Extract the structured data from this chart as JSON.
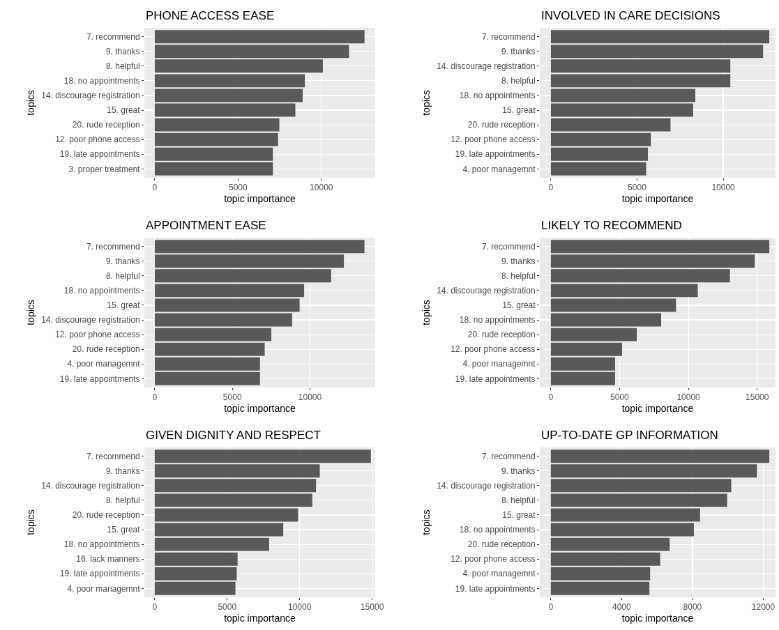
{
  "chart_data": [
    {
      "type": "bar",
      "orientation": "horizontal",
      "title": "PHONE ACCESS EASE",
      "xlabel": "topic importance",
      "ylabel": "topics",
      "color": "#595959",
      "grid": true,
      "xlim": [
        -620,
        13230
      ],
      "xticks": [
        0,
        5000,
        10000
      ],
      "categories": [
        "7. recommend",
        "9. thanks",
        "8. helpful",
        "18. no appointments",
        "14. discourage registration",
        "15. great",
        "20. rude reception",
        "12. poor phone access",
        "19. late appointments",
        "3. proper treatment"
      ],
      "values": [
        12590,
        11660,
        10090,
        9010,
        8880,
        8440,
        7480,
        7400,
        7090,
        7090
      ]
    },
    {
      "type": "bar",
      "orientation": "horizontal",
      "title": "INVOLVED IN CARE DECISIONS",
      "xlabel": "topic importance",
      "ylabel": "topics",
      "color": "#595959",
      "grid": true,
      "xlim": [
        -640,
        13030
      ],
      "xticks": [
        0,
        5000,
        10000
      ],
      "categories": [
        "7. recommend",
        "9. thanks",
        "14. discourage registration",
        "8. helpful",
        "18. no appointments",
        "15. great",
        "20. rude reception",
        "12. poor phone access",
        "19. late appointments",
        "4. poor managemnt"
      ],
      "values": [
        12670,
        12310,
        10410,
        10410,
        8380,
        8250,
        6940,
        5800,
        5630,
        5530
      ]
    },
    {
      "type": "bar",
      "orientation": "horizontal",
      "title": "APPOINTMENT EASE",
      "xlabel": "topic importance",
      "ylabel": "topics",
      "color": "#595959",
      "grid": true,
      "xlim": [
        -670,
        14200
      ],
      "xticks": [
        0,
        5000,
        10000
      ],
      "categories": [
        "7. recommend",
        "9. thanks",
        "8. helpful",
        "18. no appointments",
        "15. great",
        "14. discourage registration",
        "12. poor phone access",
        "20. rude reception",
        "4. poor managemnt",
        "19. late appointments"
      ],
      "values": [
        13510,
        12180,
        11360,
        9620,
        9330,
        8850,
        7510,
        7080,
        6780,
        6780
      ]
    },
    {
      "type": "bar",
      "orientation": "horizontal",
      "title": "LIKELY TO RECOMMEND",
      "xlabel": "topic importance",
      "ylabel": "topics",
      "color": "#595959",
      "grid": true,
      "xlim": [
        -800,
        16330
      ],
      "xticks": [
        0,
        5000,
        10000,
        15000
      ],
      "categories": [
        "7. recommend",
        "9. thanks",
        "8. helpful",
        "14. discourage registration",
        "15. great",
        "18. no appointments",
        "20. rude reception",
        "12. poor phone access",
        "4. poor managemnt",
        "19. late appointments"
      ],
      "values": [
        15880,
        14820,
        13020,
        10680,
        9100,
        8020,
        6250,
        5180,
        4670,
        4670
      ]
    },
    {
      "type": "bar",
      "orientation": "horizontal",
      "title": "GIVEN DIGNITY AND RESPECT",
      "xlabel": "topic importance",
      "ylabel": "topics",
      "color": "#595959",
      "grid": true,
      "xlim": [
        -710,
        15210
      ],
      "xticks": [
        0,
        5000,
        10000,
        15000
      ],
      "categories": [
        "7. recommend",
        "9. thanks",
        "14. discourage registration",
        "8. helpful",
        "20. rude reception",
        "15. great",
        "18. no appointments",
        "16. lack manners",
        "19. late appointments",
        "4. poor managemnt"
      ],
      "values": [
        14910,
        11390,
        11130,
        10870,
        9890,
        8870,
        7890,
        5720,
        5660,
        5570
      ]
    },
    {
      "type": "bar",
      "orientation": "horizontal",
      "title": "UP-TO-DATE GP INFORMATION",
      "xlabel": "topic importance",
      "ylabel": "topics",
      "color": "#595959",
      "grid": true,
      "xlim": [
        -620,
        12690
      ],
      "xticks": [
        0,
        4000,
        8000,
        12000
      ],
      "categories": [
        "7. recommend",
        "9. thanks",
        "14. discourage registration",
        "8. helpful",
        "15. great",
        "18. no appointments",
        "20. rude reception",
        "12. poor phone access",
        "4. poor managemnt",
        "19. late appointments"
      ],
      "values": [
        12340,
        11640,
        10190,
        9960,
        8430,
        8080,
        6710,
        6180,
        5610,
        5570
      ]
    }
  ]
}
